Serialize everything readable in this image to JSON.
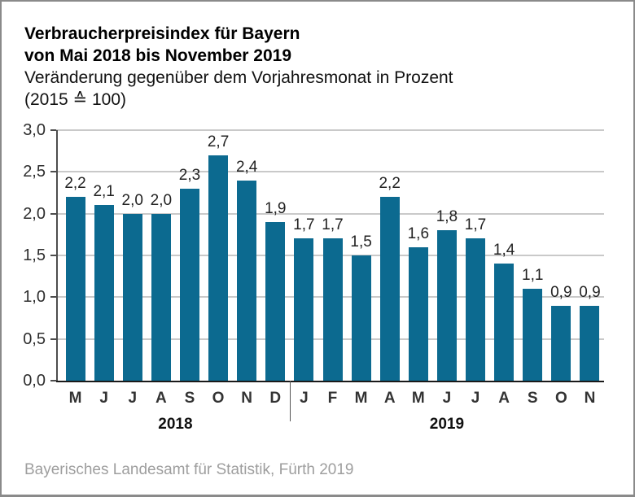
{
  "header": {
    "title_line1": "Verbraucherpreisindex für Bayern",
    "title_line2": "von Mai 2018 bis November 2019",
    "subtitle_line1": "Veränderung gegenüber dem Vorjahresmonat in Prozent",
    "subtitle_line2": "(2015 ≙ 100)"
  },
  "footer": {
    "source": "Bayerisches Landesamt für Statistik, Fürth 2019"
  },
  "colors": {
    "bar": "#0c6a90",
    "grid": "#c9c9c9",
    "axis_left": "#4d4d4d",
    "axis_bottom": "#1a1a1a",
    "divider": "#555555"
  },
  "chart_data": {
    "type": "bar",
    "title": "Verbraucherpreisindex für Bayern von Mai 2018 bis November 2019",
    "subtitle": "Veränderung gegenüber dem Vorjahresmonat in Prozent (2015 ≙ 100)",
    "xlabel": "",
    "ylabel": "",
    "ylim": [
      0,
      3
    ],
    "ytick_step": 0.5,
    "ytick_labels": [
      "0,0",
      "0,5",
      "1,0",
      "1,5",
      "2,0",
      "2,5",
      "3,0"
    ],
    "grid": true,
    "legend": "none",
    "categories": [
      "M",
      "J",
      "J",
      "A",
      "S",
      "O",
      "N",
      "D",
      "J",
      "F",
      "M",
      "A",
      "M",
      "J",
      "J",
      "A",
      "S",
      "O",
      "N"
    ],
    "values": [
      2.2,
      2.1,
      2.0,
      2.0,
      2.3,
      2.7,
      2.4,
      1.9,
      1.7,
      1.7,
      1.5,
      2.2,
      1.6,
      1.8,
      1.7,
      1.4,
      1.1,
      0.9,
      0.9
    ],
    "value_labels": [
      "2,2",
      "2,1",
      "2,0",
      "2,0",
      "2,3",
      "2,7",
      "2,4",
      "1,9",
      "1,7",
      "1,7",
      "1,5",
      "2,2",
      "1,6",
      "1,8",
      "1,7",
      "1,4",
      "1,1",
      "0,9",
      "0,9"
    ],
    "groups": [
      {
        "label": "2018",
        "start": 0,
        "end": 7
      },
      {
        "label": "2019",
        "start": 8,
        "end": 18
      }
    ]
  }
}
